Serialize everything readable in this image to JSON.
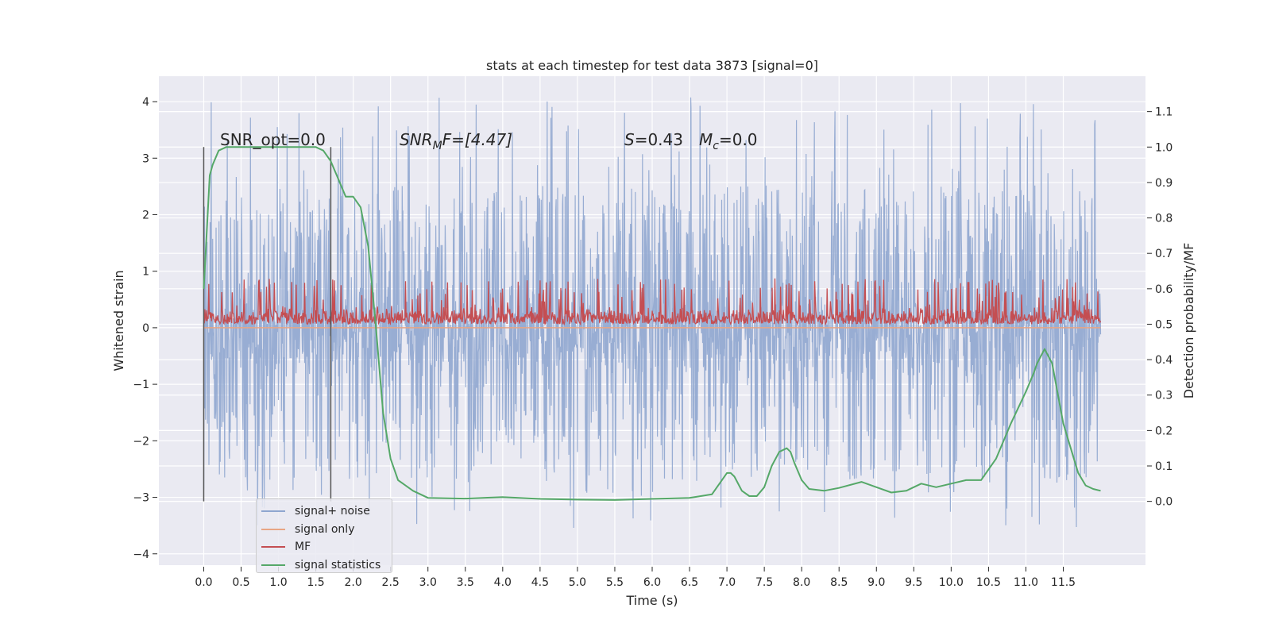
{
  "chart_data": {
    "type": "line",
    "title": "stats at each timestep for test data 3873 [signal=0]",
    "xlabel": "Time (s)",
    "ylabel": "Whitened strain",
    "y2label": "Detection probability/MF",
    "xlim": [
      -0.6,
      12.6
    ],
    "ylim": [
      -4.2,
      4.45
    ],
    "y2lim": [
      -0.18,
      1.2
    ],
    "x_ticks": [
      "0.0",
      "0.5",
      "1.0",
      "1.5",
      "2.0",
      "2.5",
      "3.0",
      "3.5",
      "4.0",
      "4.5",
      "5.0",
      "5.5",
      "6.0",
      "6.5",
      "7.0",
      "7.5",
      "8.0",
      "8.5",
      "9.0",
      "9.5",
      "10.0",
      "10.5",
      "11.0",
      "11.5"
    ],
    "y_ticks": [
      "4",
      "3",
      "2",
      "1",
      "0",
      "−1",
      "−2",
      "−3",
      "−4"
    ],
    "y2_ticks": [
      "1.1",
      "1.0",
      "0.9",
      "0.8",
      "0.7",
      "0.6",
      "0.5",
      "0.4",
      "0.3",
      "0.2",
      "0.1",
      "0.0"
    ],
    "grid": true,
    "legend_position": "lower-left",
    "annotations": {
      "snr_opt": "SNR_opt=0.0",
      "snr_mf_main": "SNR",
      "snr_mf_sub": "M",
      "snr_mf_rest": "F=[4.47]",
      "s_main": "S",
      "s_rest": "=0.43",
      "mc_main": "M",
      "mc_sub": "c",
      "mc_rest": "=0.0"
    },
    "vertical_markers_x": [
      0.0,
      1.7
    ],
    "series": [
      {
        "name": "signal+ noise",
        "color": "#8fa6cf",
        "style": "dense noise",
        "x_range": [
          0.0,
          12.0
        ],
        "envelope": {
          "typical_low": -1.5,
          "typical_high": 1.4,
          "extreme_low": -3.55,
          "extreme_high": 4.1
        }
      },
      {
        "name": "signal only",
        "color": "#e8a584",
        "x": [
          0.0,
          12.0
        ],
        "y": [
          0.0,
          0.0
        ]
      },
      {
        "name": "MF",
        "color": "#c44e52",
        "axis": "y2",
        "style": "dense noise",
        "x_range": [
          0.0,
          12.0
        ],
        "envelope": {
          "low": 0.5,
          "typical_high": 0.58,
          "extreme_high": 0.63
        }
      },
      {
        "name": "signal statistics",
        "color": "#55a868",
        "axis": "y2",
        "x": [
          0.0,
          0.05,
          0.08,
          0.12,
          0.2,
          0.3,
          0.5,
          1.0,
          1.3,
          1.5,
          1.6,
          1.7,
          1.8,
          1.9,
          2.0,
          2.1,
          2.2,
          2.3,
          2.4,
          2.5,
          2.6,
          2.8,
          3.0,
          3.5,
          4.0,
          4.5,
          5.0,
          5.5,
          6.0,
          6.5,
          6.8,
          6.9,
          7.0,
          7.05,
          7.1,
          7.2,
          7.3,
          7.4,
          7.5,
          7.6,
          7.7,
          7.8,
          7.85,
          7.9,
          8.0,
          8.1,
          8.3,
          8.5,
          8.8,
          9.0,
          9.2,
          9.4,
          9.6,
          9.8,
          10.0,
          10.2,
          10.4,
          10.6,
          10.8,
          11.0,
          11.1,
          11.15,
          11.25,
          11.35,
          11.5,
          11.7,
          11.8,
          11.9,
          12.0
        ],
        "y": [
          0.6,
          0.8,
          0.92,
          0.95,
          0.99,
          1.0,
          1.0,
          1.0,
          1.0,
          1.0,
          0.99,
          0.96,
          0.91,
          0.86,
          0.86,
          0.83,
          0.72,
          0.5,
          0.25,
          0.12,
          0.06,
          0.03,
          0.01,
          0.008,
          0.012,
          0.007,
          0.005,
          0.004,
          0.007,
          0.01,
          0.02,
          0.05,
          0.08,
          0.08,
          0.07,
          0.03,
          0.015,
          0.015,
          0.04,
          0.1,
          0.14,
          0.15,
          0.14,
          0.11,
          0.06,
          0.035,
          0.03,
          0.038,
          0.055,
          0.04,
          0.025,
          0.03,
          0.05,
          0.04,
          0.05,
          0.06,
          0.06,
          0.12,
          0.22,
          0.31,
          0.36,
          0.39,
          0.43,
          0.39,
          0.22,
          0.08,
          0.045,
          0.035,
          0.03
        ]
      }
    ]
  }
}
